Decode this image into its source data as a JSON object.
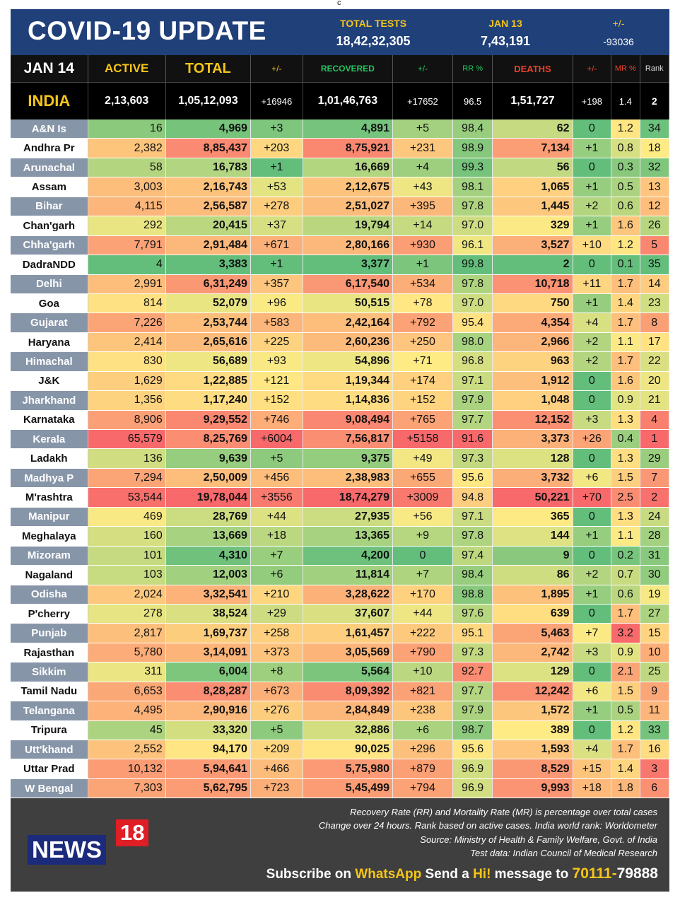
{
  "corner_mark": "c",
  "header": {
    "title": "COVID-19 UPDATE",
    "total_tests_label": "TOTAL TESTS",
    "total_tests": "18,42,32,305",
    "date_tests_label": "JAN 13",
    "date_tests": "7,43,191",
    "change_label": "+/-",
    "change": "-93036"
  },
  "columns": {
    "date": "JAN 14",
    "active": "ACTIVE",
    "total": "TOTAL",
    "total_change": "+/-",
    "recovered": "RECOVERED",
    "recovered_change": "+/-",
    "rr": "RR %",
    "deaths": "DEATHS",
    "deaths_change": "+/-",
    "mr": "MR %",
    "rank": "Rank"
  },
  "colors": {
    "header_blue": "#20407a",
    "yellow": "#f5c518",
    "green_label": "#22c55e",
    "red_label": "#e8412b",
    "orange_label": "#f0a020"
  },
  "india": {
    "name": "INDIA",
    "active": "2,13,603",
    "total": "1,05,12,093",
    "total_change": "+16946",
    "recovered": "1,01,46,763",
    "recovered_change": "+17652",
    "rr": "96.5",
    "deaths": "1,51,727",
    "deaths_change": "+198",
    "mr": "1.4",
    "rank": "2"
  },
  "chart_data": {
    "type": "table",
    "title": "COVID-19 UPDATE",
    "columns": [
      "",
      "ACTIVE",
      "TOTAL",
      "+/-",
      "RECOVERED",
      "+/-",
      "RR %",
      "DEATHS",
      "+/-",
      "MR %",
      "Rank"
    ],
    "rows": [
      [
        "A&N Is",
        "16",
        "4,969",
        "+3",
        "4,891",
        "+5",
        "98.4",
        "62",
        "0",
        "1.2",
        "34"
      ],
      [
        "Andhra Pr",
        "2,382",
        "8,85,437",
        "+203",
        "8,75,921",
        "+231",
        "98.9",
        "7,134",
        "+1",
        "0.8",
        "18"
      ],
      [
        "Arunachal",
        "58",
        "16,783",
        "+1",
        "16,669",
        "+4",
        "99.3",
        "56",
        "0",
        "0.3",
        "32"
      ],
      [
        "Assam",
        "3,003",
        "2,16,743",
        "+53",
        "2,12,675",
        "+43",
        "98.1",
        "1,065",
        "+1",
        "0.5",
        "13"
      ],
      [
        "Bihar",
        "4,115",
        "2,56,587",
        "+278",
        "2,51,027",
        "+395",
        "97.8",
        "1,445",
        "+2",
        "0.6",
        "12"
      ],
      [
        "Chan'garh",
        "292",
        "20,415",
        "+37",
        "19,794",
        "+14",
        "97.0",
        "329",
        "+1",
        "1.6",
        "26"
      ],
      [
        "Chha'garh",
        "7,791",
        "2,91,484",
        "+671",
        "2,80,166",
        "+930",
        "96.1",
        "3,527",
        "+10",
        "1.2",
        "5"
      ],
      [
        "DadraNDD",
        "4",
        "3,383",
        "+1",
        "3,377",
        "+1",
        "99.8",
        "2",
        "0",
        "0.1",
        "35"
      ],
      [
        "Delhi",
        "2,991",
        "6,31,249",
        "+357",
        "6,17,540",
        "+534",
        "97.8",
        "10,718",
        "+11",
        "1.7",
        "14"
      ],
      [
        "Goa",
        "814",
        "52,079",
        "+96",
        "50,515",
        "+78",
        "97.0",
        "750",
        "+1",
        "1.4",
        "23"
      ],
      [
        "Gujarat",
        "7,226",
        "2,53,744",
        "+583",
        "2,42,164",
        "+792",
        "95.4",
        "4,354",
        "+4",
        "1.7",
        "8"
      ],
      [
        "Haryana",
        "2,414",
        "2,65,616",
        "+225",
        "2,60,236",
        "+250",
        "98.0",
        "2,966",
        "+2",
        "1.1",
        "17"
      ],
      [
        "Himachal",
        "830",
        "56,689",
        "+93",
        "54,896",
        "+71",
        "96.8",
        "963",
        "+2",
        "1.7",
        "22"
      ],
      [
        "J&K",
        "1,629",
        "1,22,885",
        "+121",
        "1,19,344",
        "+174",
        "97.1",
        "1,912",
        "0",
        "1.6",
        "20"
      ],
      [
        "Jharkhand",
        "1,356",
        "1,17,240",
        "+152",
        "1,14,836",
        "+152",
        "97.9",
        "1,048",
        "0",
        "0.9",
        "21"
      ],
      [
        "Karnataka",
        "8,906",
        "9,29,552",
        "+746",
        "9,08,494",
        "+765",
        "97.7",
        "12,152",
        "+3",
        "1.3",
        "4"
      ],
      [
        "Kerala",
        "65,579",
        "8,25,769",
        "+6004",
        "7,56,817",
        "+5158",
        "91.6",
        "3,373",
        "+26",
        "0.4",
        "1"
      ],
      [
        "Ladakh",
        "136",
        "9,639",
        "+5",
        "9,375",
        "+49",
        "97.3",
        "128",
        "0",
        "1.3",
        "29"
      ],
      [
        "Madhya P",
        "7,294",
        "2,50,009",
        "+456",
        "2,38,983",
        "+655",
        "95.6",
        "3,732",
        "+6",
        "1.5",
        "7"
      ],
      [
        "M'rashtra",
        "53,544",
        "19,78,044",
        "+3556",
        "18,74,279",
        "+3009",
        "94.8",
        "50,221",
        "+70",
        "2.5",
        "2"
      ],
      [
        "Manipur",
        "469",
        "28,769",
        "+44",
        "27,935",
        "+56",
        "97.1",
        "365",
        "0",
        "1.3",
        "24"
      ],
      [
        "Meghalaya",
        "160",
        "13,669",
        "+18",
        "13,365",
        "+9",
        "97.8",
        "144",
        "+1",
        "1.1",
        "28"
      ],
      [
        "Mizoram",
        "101",
        "4,310",
        "+7",
        "4,200",
        "0",
        "97.4",
        "9",
        "0",
        "0.2",
        "31"
      ],
      [
        "Nagaland",
        "103",
        "12,003",
        "+6",
        "11,814",
        "+7",
        "98.4",
        "86",
        "+2",
        "0.7",
        "30"
      ],
      [
        "Odisha",
        "2,024",
        "3,32,541",
        "+210",
        "3,28,622",
        "+170",
        "98.8",
        "1,895",
        "+1",
        "0.6",
        "19"
      ],
      [
        "P'cherry",
        "278",
        "38,524",
        "+29",
        "37,607",
        "+44",
        "97.6",
        "639",
        "0",
        "1.7",
        "27"
      ],
      [
        "Punjab",
        "2,817",
        "1,69,737",
        "+258",
        "1,61,457",
        "+222",
        "95.1",
        "5,463",
        "+7",
        "3.2",
        "15"
      ],
      [
        "Rajasthan",
        "5,780",
        "3,14,091",
        "+373",
        "3,05,569",
        "+790",
        "97.3",
        "2,742",
        "+3",
        "0.9",
        "10"
      ],
      [
        "Sikkim",
        "311",
        "6,004",
        "+8",
        "5,564",
        "+10",
        "92.7",
        "129",
        "0",
        "2.1",
        "25"
      ],
      [
        "Tamil Nadu",
        "6,653",
        "8,28,287",
        "+673",
        "8,09,392",
        "+821",
        "97.7",
        "12,242",
        "+6",
        "1.5",
        "9"
      ],
      [
        "Telangana",
        "4,495",
        "2,90,916",
        "+276",
        "2,84,849",
        "+238",
        "97.9",
        "1,572",
        "+1",
        "0.5",
        "11"
      ],
      [
        "Tripura",
        "45",
        "33,320",
        "+5",
        "32,886",
        "+6",
        "98.7",
        "389",
        "0",
        "1.2",
        "33"
      ],
      [
        "Utt'khand",
        "2,552",
        "94,170",
        "+209",
        "90,025",
        "+296",
        "95.6",
        "1,593",
        "+4",
        "1.7",
        "16"
      ],
      [
        "Uttar Prad",
        "10,132",
        "5,94,641",
        "+466",
        "5,75,980",
        "+879",
        "96.9",
        "8,529",
        "+15",
        "1.4",
        "3"
      ],
      [
        "W Bengal",
        "7,303",
        "5,62,795",
        "+723",
        "5,45,499",
        "+794",
        "96.9",
        "9,993",
        "+18",
        "1.8",
        "6"
      ]
    ]
  },
  "footer": {
    "logo_word": "NEWS",
    "logo_num": "18",
    "note1": "Recovery Rate (RR) and Mortality Rate (MR) is percentage over total cases",
    "note2": "Change over 24 hours. Rank based on active cases. India world rank: Worldometer",
    "note3": "Source: Ministry of Health & Family Welfare, Govt. of India",
    "note4": "Test data: Indian Council of Medical Research",
    "sub_a": "Subscribe on ",
    "sub_whatsapp": "WhatsApp",
    "sub_b": " Send a ",
    "sub_hi": "Hi!",
    "sub_c": " message to ",
    "sub_num1": "70111-",
    "sub_num2": "79888"
  }
}
